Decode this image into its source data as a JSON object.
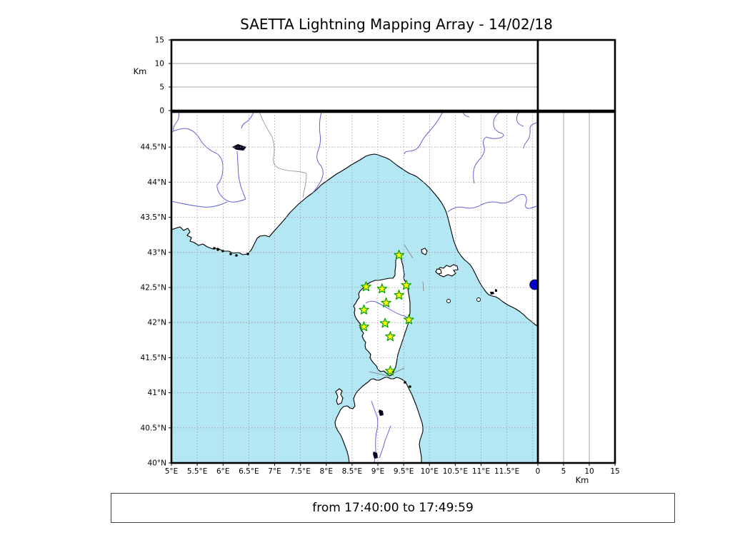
{
  "title": "SAETTA Lightning Mapping Array - 14/02/18",
  "caption": "from 17:40:00 to 17:49:59",
  "top_panel": {
    "axis_label": "Km",
    "range": [
      0,
      15
    ],
    "ticks": [
      {
        "label": "0",
        "value": 0
      },
      {
        "label": "5",
        "value": 5
      },
      {
        "label": "10",
        "value": 10
      },
      {
        "label": "15",
        "value": 15
      }
    ]
  },
  "right_panel": {
    "axis_label": "Km",
    "range": [
      0,
      15
    ],
    "ticks": [
      {
        "label": "0",
        "value": 0
      },
      {
        "label": "5",
        "value": 5
      },
      {
        "label": "10",
        "value": 10
      },
      {
        "label": "15",
        "value": 15
      }
    ]
  },
  "map": {
    "lon_range": [
      5.0,
      12.1
    ],
    "lat_range": [
      40.0,
      45.0
    ],
    "lon_ticks": [
      {
        "label": "5°E",
        "value": 5.0
      },
      {
        "label": "5.5°E",
        "value": 5.5
      },
      {
        "label": "6°E",
        "value": 6.0
      },
      {
        "label": "6.5°E",
        "value": 6.5
      },
      {
        "label": "7°E",
        "value": 7.0
      },
      {
        "label": "7.5°E",
        "value": 7.5
      },
      {
        "label": "8°E",
        "value": 8.0
      },
      {
        "label": "8.5°E",
        "value": 8.5
      },
      {
        "label": "9°E",
        "value": 9.0
      },
      {
        "label": "9.5°E",
        "value": 9.5
      },
      {
        "label": "10°E",
        "value": 10.0
      },
      {
        "label": "10.5°E",
        "value": 10.5
      },
      {
        "label": "11°E",
        "value": 11.0
      },
      {
        "label": "11.5°E",
        "value": 11.5
      }
    ],
    "lat_ticks": [
      {
        "label": "44.5°N",
        "value": 44.5
      },
      {
        "label": "44°N",
        "value": 44.0
      },
      {
        "label": "43.5°N",
        "value": 43.5
      },
      {
        "label": "43°N",
        "value": 43.0
      },
      {
        "label": "42.5°N",
        "value": 42.5
      },
      {
        "label": "42°N",
        "value": 42.0
      },
      {
        "label": "41.5°N",
        "value": 41.5
      },
      {
        "label": "41°N",
        "value": 41.0
      },
      {
        "label": "40.5°N",
        "value": 40.5
      },
      {
        "label": "40°N",
        "value": 40.0
      }
    ],
    "extra_lon_gridlines": [
      12.0
    ],
    "stations": [
      {
        "lon": 9.41,
        "lat": 42.96
      },
      {
        "lon": 8.77,
        "lat": 42.51
      },
      {
        "lon": 9.08,
        "lat": 42.48
      },
      {
        "lon": 9.55,
        "lat": 42.53
      },
      {
        "lon": 9.41,
        "lat": 42.39
      },
      {
        "lon": 9.16,
        "lat": 42.28
      },
      {
        "lon": 8.73,
        "lat": 42.18
      },
      {
        "lon": 9.6,
        "lat": 42.04
      },
      {
        "lon": 9.14,
        "lat": 41.99
      },
      {
        "lon": 8.73,
        "lat": 41.94
      },
      {
        "lon": 9.24,
        "lat": 41.8
      },
      {
        "lon": 9.24,
        "lat": 41.31
      }
    ],
    "source_point": {
      "lon": 12.04,
      "lat": 42.54
    },
    "colors": {
      "sea": "#b3e7f3",
      "land": "#ffffff",
      "coastline": "#000000",
      "river": "#6161d8",
      "country_border": "#999999",
      "grid": "#999999",
      "station_fill": "#ffff00",
      "station_edge": "#00a000",
      "source_dot": "#0000cc",
      "lake": "#05051e"
    }
  }
}
